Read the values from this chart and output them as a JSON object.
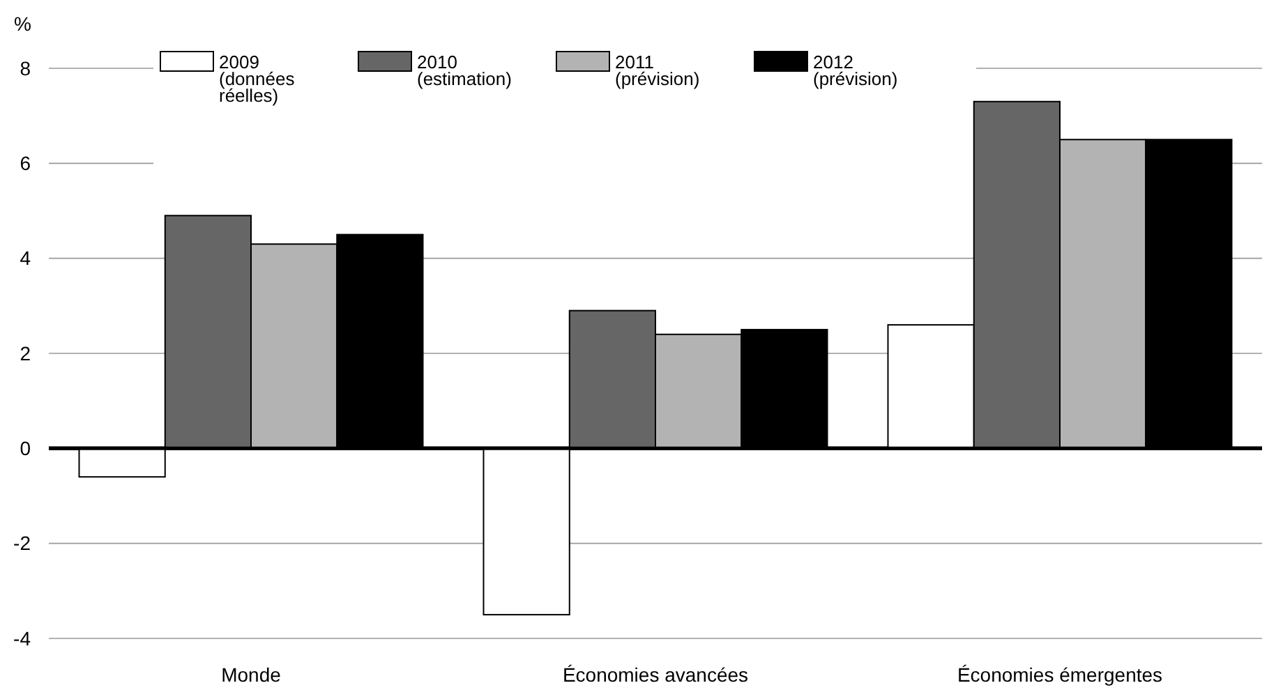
{
  "chart_data": {
    "type": "bar",
    "ylabel": "%",
    "categories": [
      "Monde",
      "Économies avancées",
      "Économies émergentes"
    ],
    "series": [
      {
        "name": "2009\n(données\nréelles)",
        "color": "#ffffff",
        "values": [
          -0.6,
          -3.5,
          2.6
        ]
      },
      {
        "name": "2010\n(estimation)",
        "color": "#666666",
        "values": [
          4.9,
          2.9,
          7.3
        ]
      },
      {
        "name": "2011\n(prévision)",
        "color": "#b3b3b3",
        "values": [
          4.3,
          2.4,
          6.5
        ]
      },
      {
        "name": "2012\n(prévision)",
        "color": "#000000",
        "values": [
          4.5,
          2.5,
          6.5
        ]
      }
    ],
    "ylim": [
      -4,
      8
    ],
    "yticks": [
      -4,
      -2,
      0,
      2,
      4,
      6,
      8
    ],
    "grid": "y",
    "legend": "top"
  }
}
